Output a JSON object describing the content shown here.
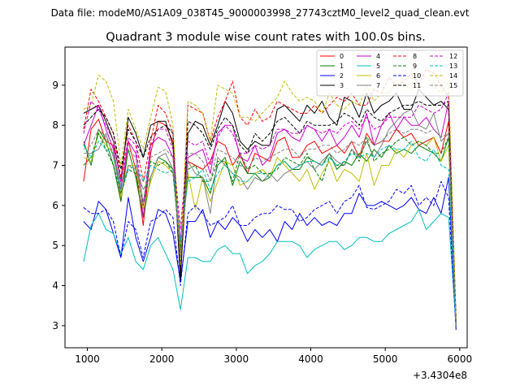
{
  "chart_data": {
    "type": "line",
    "suptitle": "Data file: modeM0/AS1A09_038T45_9000003998_27743cztM0_level2_quad_clean.evt",
    "title": "Quadrant 3 module wise count rates with 100.0s bins.",
    "xlabel": "",
    "ylabel": "",
    "x_offset_label": "+3.4304e8",
    "xlim": [
      700,
      6100
    ],
    "ylim": [
      2.45,
      9.95
    ],
    "xticks": [
      1000,
      2000,
      3000,
      4000,
      5000,
      6000
    ],
    "yticks": [
      3,
      4,
      5,
      6,
      7,
      8,
      9
    ],
    "grid": false,
    "legend": {
      "placement": "top-right",
      "columns": 4
    },
    "x": [
      950,
      1050,
      1150,
      1250,
      1350,
      1450,
      1550,
      1650,
      1750,
      1850,
      1950,
      2050,
      2150,
      2250,
      2350,
      2450,
      2550,
      2650,
      2750,
      2850,
      2950,
      3050,
      3150,
      3250,
      3350,
      3450,
      3550,
      3650,
      3750,
      3850,
      3950,
      4050,
      4150,
      4250,
      4350,
      4450,
      4550,
      4650,
      4750,
      4850,
      4950,
      5050,
      5150,
      5250,
      5350,
      5450,
      5550,
      5650,
      5750,
      5850,
      5950
    ],
    "series": [
      {
        "name": "0",
        "color": "#ff0000",
        "dash": "solid",
        "values": [
          6.6,
          7.9,
          8.15,
          7.6,
          7.5,
          6.1,
          7.6,
          6.9,
          5.5,
          7.3,
          8.1,
          8.0,
          7.6,
          4.3,
          7.1,
          7.0,
          6.9,
          7.1,
          7.6,
          7.5,
          7.0,
          7.3,
          6.8,
          7.3,
          7.2,
          7.1,
          7.6,
          7.7,
          7.2,
          7.2,
          7.5,
          7.6,
          7.3,
          7.4,
          7.5,
          7.3,
          7.6,
          7.2,
          7.8,
          7.5,
          7.6,
          7.6,
          7.9,
          7.7,
          7.8,
          7.5,
          7.6,
          7.7,
          7.3,
          8.1,
          3.0
        ]
      },
      {
        "name": "1",
        "color": "#008000",
        "dash": "solid",
        "values": [
          7.6,
          7.0,
          7.9,
          7.6,
          7.0,
          6.1,
          7.4,
          6.7,
          5.7,
          6.7,
          7.2,
          7.1,
          6.9,
          4.9,
          6.7,
          6.7,
          6.7,
          6.3,
          7.0,
          7.2,
          6.5,
          7.1,
          6.8,
          6.8,
          6.6,
          6.7,
          7.0,
          7.1,
          6.9,
          6.9,
          7.2,
          7.1,
          7.0,
          7.3,
          6.9,
          7.1,
          7.0,
          7.3,
          7.1,
          7.4,
          7.2,
          7.5,
          7.3,
          7.4,
          7.3,
          7.5,
          7.4,
          7.3,
          7.1,
          7.7,
          3.0
        ]
      },
      {
        "name": "2",
        "color": "#0000ff",
        "dash": "solid",
        "values": [
          5.6,
          5.4,
          6.1,
          5.9,
          5.3,
          4.7,
          6.2,
          5.2,
          4.6,
          5.2,
          5.9,
          5.8,
          5.3,
          4.1,
          5.6,
          5.6,
          5.9,
          5.2,
          5.6,
          5.4,
          5.7,
          5.5,
          5.1,
          5.4,
          5.2,
          5.4,
          5.1,
          5.6,
          5.4,
          5.8,
          5.5,
          5.7,
          5.5,
          5.6,
          5.5,
          5.8,
          5.8,
          6.3,
          6.0,
          6.0,
          6.1,
          6.0,
          5.9,
          6.0,
          6.2,
          5.9,
          5.8,
          6.2,
          5.8,
          6.7,
          2.9
        ]
      },
      {
        "name": "3",
        "color": "#000000",
        "dash": "solid",
        "values": [
          8.3,
          8.4,
          8.5,
          8.1,
          7.6,
          6.6,
          8.2,
          7.8,
          7.2,
          8.0,
          8.1,
          8.1,
          7.5,
          4.1,
          7.8,
          8.1,
          8.0,
          7.5,
          8.0,
          8.6,
          8.3,
          7.6,
          7.4,
          7.6,
          7.5,
          7.5,
          8.4,
          8.5,
          8.3,
          8.1,
          8.5,
          8.3,
          8.6,
          8.2,
          8.0,
          8.7,
          8.6,
          8.2,
          8.8,
          8.3,
          8.5,
          8.6,
          8.8,
          8.4,
          8.4,
          8.9,
          8.7,
          8.5,
          8.6,
          8.4,
          3.1
        ]
      },
      {
        "name": "4",
        "color": "#cc00cc",
        "dash": "solid",
        "values": [
          7.5,
          8.0,
          8.5,
          7.9,
          7.4,
          6.4,
          7.6,
          7.3,
          5.7,
          7.5,
          7.7,
          7.6,
          7.2,
          5.1,
          7.2,
          7.3,
          7.4,
          6.8,
          7.8,
          8.0,
          8.0,
          7.2,
          7.1,
          7.5,
          7.0,
          7.2,
          7.8,
          7.9,
          7.7,
          7.6,
          8.0,
          7.9,
          7.6,
          7.9,
          7.5,
          7.7,
          8.0,
          7.7,
          8.3,
          7.5,
          8.0,
          8.3,
          7.9,
          8.2,
          8.0,
          8.0,
          8.2,
          7.9,
          7.7,
          8.6,
          3.0
        ]
      },
      {
        "name": "5",
        "color": "#00bfbf",
        "dash": "solid",
        "values": [
          4.6,
          5.5,
          5.8,
          5.4,
          5.3,
          4.8,
          5.2,
          4.6,
          4.4,
          5.0,
          5.2,
          4.8,
          4.4,
          3.4,
          4.7,
          4.7,
          4.6,
          4.6,
          4.9,
          5.0,
          4.8,
          4.8,
          4.3,
          4.5,
          4.6,
          4.8,
          5.1,
          5.1,
          5.1,
          5.0,
          4.7,
          4.9,
          5.0,
          5.1,
          5.1,
          4.9,
          5.0,
          5.2,
          5.2,
          5.1,
          5.1,
          5.3,
          5.4,
          5.5,
          5.6,
          5.9,
          5.4,
          5.6,
          5.8,
          5.7,
          3.0
        ]
      },
      {
        "name": "6",
        "color": "#bfbf00",
        "dash": "solid",
        "values": [
          7.2,
          7.1,
          7.8,
          7.5,
          7.3,
          6.2,
          7.0,
          7.0,
          5.9,
          6.6,
          7.1,
          7.0,
          6.8,
          4.9,
          6.8,
          5.9,
          6.7,
          6.1,
          6.6,
          7.1,
          7.0,
          6.5,
          6.6,
          6.8,
          6.9,
          6.7,
          7.2,
          7.0,
          6.8,
          6.6,
          6.9,
          6.4,
          6.8,
          7.1,
          6.6,
          6.9,
          6.8,
          6.6,
          7.3,
          6.5,
          7.0,
          7.0,
          7.4,
          7.2,
          7.5,
          7.6,
          7.5,
          7.7,
          7.1,
          7.5,
          3.0
        ]
      },
      {
        "name": "7",
        "color": "#808080",
        "dash": "solid",
        "values": [
          7.3,
          7.3,
          7.4,
          7.8,
          7.2,
          6.3,
          7.0,
          6.9,
          6.4,
          6.7,
          7.2,
          7.3,
          6.9,
          4.7,
          7.1,
          6.8,
          6.7,
          5.8,
          7.2,
          7.0,
          6.8,
          6.7,
          6.4,
          6.7,
          6.6,
          6.8,
          6.6,
          6.8,
          6.9,
          7.0,
          7.1,
          6.9,
          7.1,
          7.3,
          7.1,
          7.0,
          7.4,
          7.2,
          7.6,
          7.2,
          7.5,
          7.9,
          8.1,
          8.3,
          8.4,
          8.0,
          7.9,
          8.3,
          7.6,
          7.8,
          3.0
        ]
      },
      {
        "name": "8",
        "color": "#ff0000",
        "dash": "dashed",
        "values": [
          7.9,
          8.9,
          8.6,
          8.2,
          7.8,
          6.7,
          8.0,
          7.6,
          6.6,
          7.6,
          8.5,
          8.3,
          7.8,
          4.6,
          8.5,
          8.4,
          8.3,
          7.6,
          8.2,
          8.6,
          9.1,
          8.2,
          8.0,
          8.4,
          8.1,
          8.2,
          8.6,
          8.5,
          8.4,
          8.3,
          8.3,
          8.5,
          8.3,
          8.5,
          8.7,
          8.6,
          8.8,
          8.5,
          8.5,
          8.9,
          8.8,
          9.2,
          9.0,
          9.1,
          9.3,
          9.0,
          9.4,
          9.3,
          9.0,
          8.7,
          3.0
        ]
      },
      {
        "name": "9",
        "color": "#008000",
        "dash": "dashed",
        "values": [
          7.0,
          7.2,
          7.8,
          7.4,
          7.0,
          6.3,
          6.9,
          6.8,
          6.0,
          7.1,
          7.0,
          7.1,
          6.8,
          4.9,
          6.9,
          7.0,
          6.6,
          6.6,
          7.1,
          7.1,
          6.6,
          7.3,
          6.9,
          7.0,
          6.8,
          6.8,
          6.9,
          7.2,
          7.1,
          7.0,
          7.3,
          6.9,
          6.6,
          7.2,
          7.0,
          7.0,
          7.4,
          7.1,
          7.7,
          7.1,
          7.3,
          7.4,
          7.6,
          7.7,
          7.5,
          7.6,
          7.5,
          7.3,
          7.3,
          7.7,
          3.1
        ]
      },
      {
        "name": "10",
        "color": "#0000ff",
        "dash": "dashed",
        "values": [
          5.95,
          5.8,
          5.8,
          5.9,
          5.6,
          4.7,
          5.6,
          5.4,
          4.7,
          5.6,
          5.7,
          5.9,
          5.7,
          4.0,
          5.8,
          6.0,
          5.8,
          5.5,
          5.6,
          5.7,
          6.0,
          5.5,
          5.5,
          5.7,
          5.8,
          5.8,
          6.0,
          5.9,
          5.9,
          5.6,
          5.7,
          5.9,
          6.0,
          6.1,
          5.8,
          6.1,
          6.2,
          6.5,
          5.95,
          5.9,
          6.0,
          6.1,
          6.4,
          6.3,
          6.5,
          6.0,
          6.2,
          6.0,
          6.6,
          6.2,
          2.9
        ]
      },
      {
        "name": "11",
        "color": "#000000",
        "dash": "dashed",
        "values": [
          8.0,
          8.2,
          8.4,
          8.2,
          7.8,
          6.9,
          7.9,
          7.6,
          7.2,
          7.7,
          7.9,
          8.0,
          7.8,
          4.4,
          8.1,
          8.0,
          7.8,
          7.4,
          7.9,
          8.2,
          8.0,
          7.5,
          7.3,
          7.8,
          7.6,
          7.8,
          8.1,
          8.2,
          8.0,
          7.8,
          8.1,
          8.0,
          8.0,
          8.0,
          8.1,
          8.3,
          8.2,
          8.0,
          8.4,
          8.2,
          8.1,
          8.3,
          8.4,
          8.5,
          8.5,
          8.6,
          8.5,
          8.5,
          8.5,
          8.6,
          3.2
        ]
      },
      {
        "name": "12",
        "color": "#cc00cc",
        "dash": "dashed",
        "values": [
          7.8,
          8.6,
          8.4,
          8.0,
          7.6,
          6.6,
          7.7,
          7.5,
          6.0,
          7.5,
          7.9,
          7.9,
          7.4,
          5.4,
          7.6,
          7.5,
          7.6,
          7.0,
          7.7,
          8.0,
          7.8,
          7.3,
          7.3,
          7.5,
          7.4,
          7.5,
          7.9,
          7.9,
          7.8,
          7.8,
          8.0,
          7.9,
          7.8,
          7.9,
          7.8,
          8.0,
          8.1,
          7.9,
          8.2,
          7.9,
          8.0,
          8.2,
          8.2,
          8.2,
          8.2,
          8.5,
          8.4,
          8.3,
          8.4,
          8.8,
          3.1
        ]
      },
      {
        "name": "13",
        "color": "#00bfbf",
        "dash": "dashed",
        "values": [
          7.5,
          7.2,
          7.6,
          7.4,
          7.3,
          6.4,
          6.9,
          7.0,
          6.6,
          7.0,
          6.9,
          6.8,
          6.9,
          5.1,
          6.6,
          6.7,
          6.9,
          6.4,
          6.8,
          7.0,
          6.8,
          6.6,
          6.6,
          6.8,
          6.8,
          6.7,
          7.0,
          7.1,
          6.9,
          7.0,
          7.1,
          7.1,
          7.0,
          7.2,
          7.0,
          7.1,
          7.3,
          7.2,
          7.3,
          7.2,
          7.4,
          7.5,
          7.4,
          7.4,
          7.6,
          7.2,
          7.1,
          7.4,
          7.0,
          6.9,
          3.0
        ]
      },
      {
        "name": "14",
        "color": "#bfbf00",
        "dash": "dashed",
        "values": [
          8.4,
          8.5,
          9.25,
          9.1,
          8.6,
          7.0,
          8.4,
          7.9,
          7.4,
          8.2,
          8.95,
          8.85,
          8.0,
          4.5,
          8.6,
          8.5,
          8.3,
          7.6,
          9.0,
          8.9,
          8.8,
          8.2,
          8.2,
          8.1,
          8.3,
          8.5,
          8.7,
          9.1,
          8.8,
          8.6,
          8.7,
          8.6,
          8.3,
          8.8,
          8.5,
          8.4,
          8.6,
          8.5,
          9.0,
          8.6,
          8.8,
          8.8,
          9.1,
          9.0,
          8.9,
          9.3,
          9.2,
          9.0,
          8.8,
          9.1,
          3.2
        ]
      },
      {
        "name": "15",
        "color": "#808080",
        "dash": "dashed",
        "values": [
          7.4,
          7.5,
          7.9,
          7.7,
          7.3,
          6.5,
          7.4,
          7.2,
          6.1,
          7.2,
          7.3,
          7.4,
          7.2,
          4.6,
          7.3,
          7.3,
          7.1,
          6.6,
          7.4,
          7.3,
          7.2,
          7.0,
          6.9,
          7.2,
          7.1,
          7.2,
          7.3,
          7.4,
          7.4,
          7.2,
          7.4,
          7.4,
          7.5,
          7.5,
          7.3,
          7.4,
          7.6,
          7.5,
          7.7,
          7.5,
          7.6,
          7.8,
          7.9,
          7.8,
          7.9,
          7.9,
          7.8,
          7.9,
          7.7,
          7.8,
          3.0
        ]
      }
    ]
  }
}
